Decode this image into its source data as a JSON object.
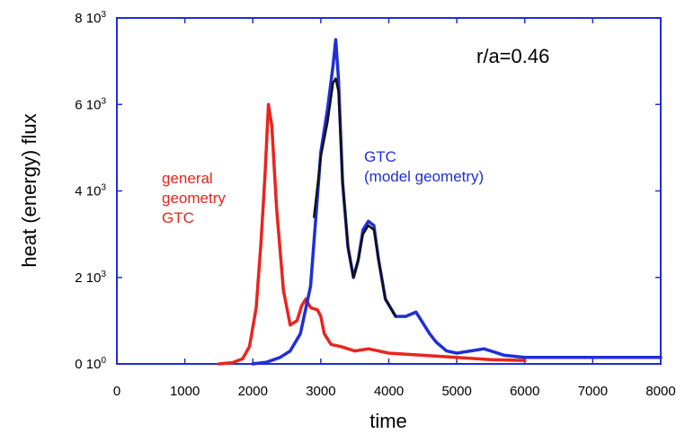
{
  "chart_data": {
    "type": "line",
    "title": "",
    "xlabel": "time",
    "ylabel": "heat (energy) flux",
    "xlim": [
      0,
      8000
    ],
    "ylim": [
      0,
      8000
    ],
    "x_ticks": [
      "0",
      "1000",
      "2000",
      "3000",
      "4000",
      "5000",
      "6000",
      "7000",
      "8000"
    ],
    "y_ticks": [
      {
        "value": 0,
        "mantissa": "0",
        "base": "10",
        "exp": "0"
      },
      {
        "value": 2000,
        "mantissa": "2",
        "base": "10",
        "exp": "3"
      },
      {
        "value": 4000,
        "mantissa": "4",
        "base": "10",
        "exp": "3"
      },
      {
        "value": 6000,
        "mantissa": "6",
        "base": "10",
        "exp": "3"
      },
      {
        "value": 8000,
        "mantissa": "8",
        "base": "10",
        "exp": "3"
      }
    ],
    "grid": false,
    "annotations": [
      {
        "text": "r/a=0.46",
        "color": "#000000"
      },
      {
        "lines": [
          "general",
          "geometry",
          "GTC"
        ],
        "color": "#e8251f"
      },
      {
        "lines": [
          "GTC",
          "(model geometry)"
        ],
        "color": "#1f2fd6"
      }
    ],
    "series": [
      {
        "color": "#e8251f",
        "x": [
          1500,
          1700,
          1850,
          1950,
          2050,
          2120,
          2180,
          2230,
          2280,
          2350,
          2450,
          2550,
          2650,
          2720,
          2780,
          2850,
          2950,
          3000,
          3050,
          3150,
          3300,
          3500,
          3700,
          4000,
          4500,
          5000,
          5500,
          6000
        ],
        "y": [
          0,
          30,
          120,
          400,
          1300,
          2800,
          4400,
          6000,
          5500,
          3600,
          1700,
          900,
          1000,
          1350,
          1500,
          1300,
          1250,
          1100,
          700,
          450,
          400,
          300,
          350,
          250,
          200,
          150,
          100,
          80
        ]
      },
      {
        "color": "#1f2fd6",
        "x": [
          2000,
          2200,
          2400,
          2550,
          2700,
          2850,
          3000,
          3100,
          3180,
          3220,
          3260,
          3320,
          3400,
          3480,
          3550,
          3620,
          3700,
          3780,
          3850,
          3950,
          4100,
          4250,
          4400,
          4500,
          4600,
          4700,
          4850,
          5000,
          5200,
          5400,
          5500,
          5700,
          6000,
          6500,
          7000,
          7500,
          8000
        ],
        "y": [
          0,
          40,
          150,
          300,
          700,
          1800,
          4900,
          5900,
          6900,
          7500,
          6600,
          4200,
          2700,
          2000,
          2400,
          3100,
          3300,
          3200,
          2400,
          1500,
          1100,
          1100,
          1200,
          950,
          700,
          500,
          300,
          250,
          300,
          350,
          300,
          200,
          150,
          150,
          150,
          150,
          150
        ]
      },
      {
        "color": "#111111",
        "x": [
          2900,
          3000,
          3100,
          3180,
          3220,
          3260,
          3320,
          3400,
          3480,
          3550,
          3620,
          3700,
          3780,
          3850,
          3950,
          4100
        ],
        "y": [
          3400,
          4800,
          5600,
          6500,
          6600,
          6300,
          4200,
          2700,
          2000,
          2400,
          3000,
          3200,
          3100,
          2400,
          1500,
          1100
        ]
      }
    ]
  }
}
